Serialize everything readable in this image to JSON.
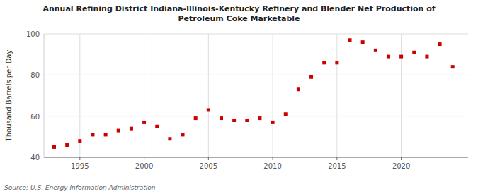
{
  "chart_data": {
    "type": "scatter",
    "title": "Annual Refining District Indiana-Illinois-Kentucky Refinery and Blender Net Production of\nPetroleum Coke Marketable",
    "ylabel": "Thousand Barrels per Day",
    "source": "Source: U.S. Energy Information Administration",
    "color": "#cc0000",
    "marker": "square",
    "grid": true,
    "xlim": [
      1992.2,
      2025.2
    ],
    "ylim": [
      40,
      100
    ],
    "xticks": [
      1995,
      2000,
      2005,
      2010,
      2015,
      2020
    ],
    "yticks": [
      40,
      60,
      80,
      100
    ],
    "x": [
      1993,
      1994,
      1995,
      1996,
      1997,
      1998,
      1999,
      2000,
      2001,
      2002,
      2003,
      2004,
      2005,
      2006,
      2007,
      2008,
      2009,
      2010,
      2011,
      2012,
      2013,
      2014,
      2015,
      2016,
      2017,
      2018,
      2019,
      2020,
      2021,
      2022,
      2023,
      2024
    ],
    "values": [
      45,
      46,
      48,
      51,
      51,
      53,
      54,
      57,
      55,
      49,
      51,
      59,
      63,
      59,
      58,
      58,
      59,
      57,
      61,
      73,
      79,
      86,
      86,
      97,
      96,
      92,
      89,
      89,
      91,
      89,
      95,
      84
    ]
  }
}
